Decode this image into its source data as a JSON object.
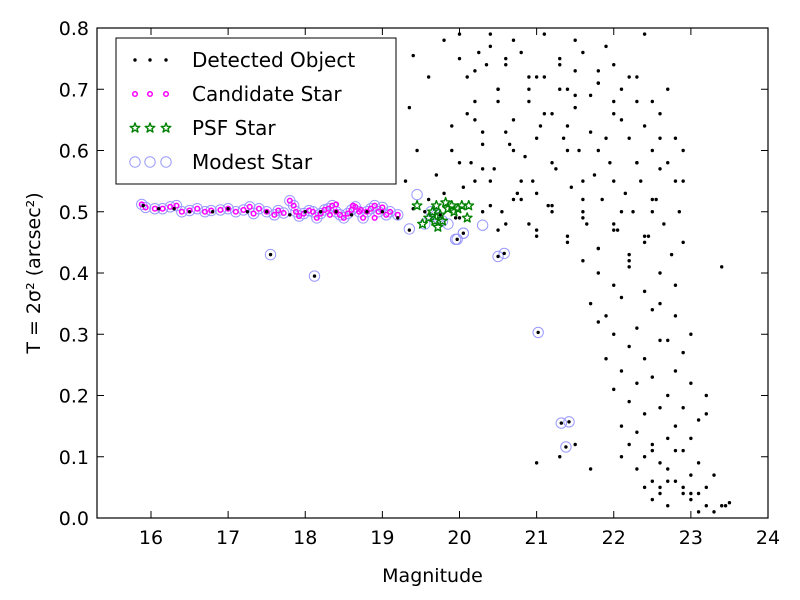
{
  "chart_data": {
    "type": "scatter",
    "xlabel": "Magnitude",
    "ylabel": "T = 2σ² (arcsec²)",
    "xlim": [
      15.3,
      24.0
    ],
    "ylim": [
      0.0,
      0.8
    ],
    "x_ticks": [
      "16",
      "17",
      "18",
      "19",
      "20",
      "21",
      "22",
      "23",
      "24"
    ],
    "y_ticks": [
      "0.0",
      "0.1",
      "0.2",
      "0.3",
      "0.4",
      "0.5",
      "0.6",
      "0.7",
      "0.8"
    ],
    "grid": false,
    "legend_position": "top-left",
    "colors": {
      "detected": "#000000",
      "candidate": "#ff00ff",
      "psf": "#008000",
      "modest": "#9999ff"
    },
    "series": [
      {
        "name": "Detected Object",
        "marker": "dot",
        "x": [
          15.9,
          16.1,
          16.3,
          16.5,
          16.8,
          17.0,
          17.25,
          17.5,
          17.8,
          18.0,
          18.2,
          18.4,
          18.6,
          18.8,
          19.0,
          19.2,
          19.4,
          19.55,
          19.75,
          19.95,
          17.55,
          18.12,
          19.35,
          19.97,
          20.05,
          20.5,
          20.58,
          21.02,
          21.32,
          21.42,
          21.38,
          19.3,
          19.35,
          19.4,
          19.45,
          19.6,
          19.8,
          19.9,
          20.0,
          20.2,
          20.25,
          20.3,
          20.35,
          20.4,
          20.5,
          20.6,
          20.7,
          20.8,
          20.9,
          21.0,
          21.1,
          21.2,
          21.3,
          21.4,
          21.5,
          21.6,
          21.7,
          21.8,
          21.9,
          22.0,
          22.1,
          22.2,
          22.3,
          22.4,
          22.5,
          22.6,
          22.7,
          22.8,
          22.9,
          20.0,
          20.1,
          20.2,
          20.4,
          20.5,
          20.6,
          20.7,
          20.9,
          21.0,
          21.1,
          21.3,
          21.4,
          21.5,
          21.6,
          21.8,
          21.9,
          22.0,
          22.1,
          22.3,
          22.4,
          22.5,
          22.6,
          22.8,
          22.9,
          19.6,
          19.7,
          19.9,
          20.05,
          20.15,
          20.3,
          20.45,
          20.55,
          20.65,
          20.75,
          20.85,
          20.95,
          21.05,
          21.15,
          21.25,
          21.35,
          21.45,
          21.55,
          21.65,
          21.75,
          21.85,
          21.95,
          22.05,
          22.15,
          22.25,
          22.35,
          22.45,
          22.55,
          22.65,
          22.75,
          22.85,
          20.1,
          20.3,
          20.5,
          20.7,
          20.9,
          21.0,
          21.2,
          21.4,
          21.5,
          21.7,
          21.8,
          22.0,
          22.2,
          22.3,
          22.5,
          22.7,
          22.9,
          20.0,
          20.2,
          20.4,
          20.6,
          20.8,
          21.1,
          21.3,
          21.5,
          21.6,
          21.8,
          22.0,
          22.1,
          22.3,
          22.5,
          22.6,
          20.3,
          20.5,
          20.7,
          20.9,
          21.0,
          21.2,
          21.4,
          21.6,
          21.8,
          22.0,
          22.2,
          22.4,
          22.6,
          22.8,
          19.8,
          20.0,
          20.2,
          20.4,
          20.6,
          20.8,
          21.0,
          21.2,
          21.4,
          21.6,
          21.8,
          22.0,
          22.2,
          22.4,
          21.6,
          21.8,
          22.0,
          22.2,
          22.4,
          22.6,
          22.8,
          23.0,
          21.7,
          21.9,
          22.1,
          22.3,
          22.5,
          22.7,
          22.9,
          21.8,
          22.0,
          22.2,
          22.4,
          22.6,
          22.8,
          23.0,
          23.2,
          21.9,
          22.1,
          22.3,
          22.5,
          22.7,
          22.9,
          23.1,
          22.0,
          22.2,
          22.4,
          22.6,
          22.8,
          23.0,
          22.1,
          22.3,
          22.5,
          22.7,
          22.9,
          23.1,
          23.3,
          22.2,
          22.4,
          22.6,
          22.8,
          23.0,
          23.2,
          22.3,
          22.5,
          22.7,
          22.9,
          23.1,
          22.4,
          22.6,
          22.8,
          23.0,
          23.2,
          23.4,
          22.5,
          22.7,
          22.9,
          23.1,
          23.3,
          23.5,
          21.0,
          21.3,
          21.5,
          21.7,
          22.1,
          22.5,
          22.6,
          22.7,
          23.0,
          23.2,
          23.4,
          23.45
        ],
        "y": [
          0.51,
          0.505,
          0.505,
          0.5,
          0.5,
          0.505,
          0.5,
          0.5,
          0.495,
          0.5,
          0.5,
          0.5,
          0.495,
          0.5,
          0.5,
          0.49,
          0.505,
          0.5,
          0.495,
          0.49,
          0.43,
          0.395,
          0.47,
          0.455,
          0.465,
          0.427,
          0.432,
          0.303,
          0.155,
          0.157,
          0.116,
          0.55,
          0.67,
          0.755,
          0.6,
          0.72,
          0.78,
          0.64,
          0.79,
          0.68,
          0.76,
          0.57,
          0.74,
          0.79,
          0.7,
          0.63,
          0.78,
          0.55,
          0.72,
          0.62,
          0.79,
          0.58,
          0.7,
          0.64,
          0.78,
          0.52,
          0.69,
          0.6,
          0.77,
          0.55,
          0.65,
          0.72,
          0.58,
          0.79,
          0.5,
          0.62,
          0.7,
          0.55,
          0.6,
          0.58,
          0.72,
          0.65,
          0.55,
          0.68,
          0.75,
          0.6,
          0.7,
          0.53,
          0.66,
          0.74,
          0.6,
          0.69,
          0.55,
          0.73,
          0.62,
          0.68,
          0.5,
          0.58,
          0.64,
          0.52,
          0.57,
          0.62,
          0.45,
          0.52,
          0.56,
          0.6,
          0.54,
          0.58,
          0.63,
          0.57,
          0.5,
          0.61,
          0.53,
          0.59,
          0.55,
          0.64,
          0.51,
          0.57,
          0.62,
          0.54,
          0.6,
          0.48,
          0.56,
          0.52,
          0.58,
          0.47,
          0.53,
          0.5,
          0.55,
          0.46,
          0.52,
          0.48,
          0.43,
          0.5,
          0.66,
          0.61,
          0.7,
          0.65,
          0.68,
          0.72,
          0.66,
          0.7,
          0.67,
          0.63,
          0.71,
          0.66,
          0.62,
          0.68,
          0.6,
          0.58,
          0.55,
          0.75,
          0.73,
          0.77,
          0.74,
          0.76,
          0.72,
          0.75,
          0.73,
          0.76,
          0.71,
          0.74,
          0.7,
          0.72,
          0.68,
          0.66,
          0.5,
          0.47,
          0.52,
          0.48,
          0.46,
          0.5,
          0.45,
          0.49,
          0.44,
          0.47,
          0.42,
          0.45,
          0.4,
          0.38,
          0.53,
          0.49,
          0.55,
          0.51,
          0.48,
          0.52,
          0.47,
          0.51,
          0.46,
          0.5,
          0.44,
          0.48,
          0.43,
          0.46,
          0.42,
          0.4,
          0.38,
          0.41,
          0.37,
          0.35,
          0.33,
          0.3,
          0.35,
          0.33,
          0.36,
          0.31,
          0.34,
          0.29,
          0.27,
          0.32,
          0.3,
          0.28,
          0.26,
          0.29,
          0.24,
          0.22,
          0.2,
          0.26,
          0.24,
          0.22,
          0.23,
          0.2,
          0.18,
          0.16,
          0.21,
          0.19,
          0.17,
          0.18,
          0.15,
          0.13,
          0.15,
          0.14,
          0.12,
          0.13,
          0.11,
          0.09,
          0.07,
          0.12,
          0.1,
          0.09,
          0.11,
          0.07,
          0.05,
          0.08,
          0.06,
          0.08,
          0.05,
          0.04,
          0.05,
          0.04,
          0.06,
          0.03,
          0.02,
          0.02,
          0.03,
          0.02,
          0.04,
          0.01,
          0.01,
          0.025,
          0.09,
          0.1,
          0.12,
          0.08,
          0.1,
          0.11,
          0.05,
          0.06,
          0.04,
          0.17,
          0.41,
          0.02
        ]
      },
      {
        "name": "Candidate Star",
        "marker": "circle-small",
        "x": [
          15.88,
          15.93,
          16.05,
          16.15,
          16.25,
          16.33,
          16.4,
          16.5,
          16.6,
          16.7,
          16.78,
          16.9,
          17.0,
          17.1,
          17.2,
          17.28,
          17.33,
          17.4,
          17.5,
          17.6,
          17.65,
          17.72,
          17.8,
          17.85,
          17.88,
          17.92,
          17.98,
          18.05,
          18.1,
          18.15,
          18.2,
          18.25,
          18.3,
          18.35,
          18.4,
          18.45,
          18.5,
          18.55,
          18.6,
          18.65,
          18.7,
          18.75,
          18.8,
          18.85,
          18.9,
          18.95,
          19.0,
          19.05,
          19.1,
          19.2,
          18.32,
          18.4,
          18.62,
          18.72,
          18.9
        ],
        "y": [
          0.512,
          0.507,
          0.505,
          0.505,
          0.508,
          0.51,
          0.5,
          0.502,
          0.505,
          0.5,
          0.502,
          0.503,
          0.505,
          0.5,
          0.503,
          0.508,
          0.497,
          0.505,
          0.5,
          0.495,
          0.502,
          0.498,
          0.518,
          0.51,
          0.5,
          0.493,
          0.497,
          0.502,
          0.5,
          0.49,
          0.497,
          0.503,
          0.505,
          0.51,
          0.5,
          0.495,
          0.49,
          0.497,
          0.503,
          0.508,
          0.5,
          0.49,
          0.5,
          0.505,
          0.51,
          0.5,
          0.507,
          0.495,
          0.5,
          0.495,
          0.495,
          0.512,
          0.51,
          0.503,
          0.49
        ]
      },
      {
        "name": "PSF Star",
        "marker": "star",
        "x": [
          19.45,
          19.52,
          19.6,
          19.65,
          19.68,
          19.7,
          19.72,
          19.75,
          19.78,
          19.82,
          19.85,
          19.9,
          19.93,
          19.98,
          20.03,
          20.1,
          20.12
        ],
        "y": [
          0.51,
          0.48,
          0.49,
          0.5,
          0.485,
          0.51,
          0.475,
          0.495,
          0.485,
          0.515,
          0.505,
          0.51,
          0.5,
          0.505,
          0.51,
          0.49,
          0.51
        ]
      },
      {
        "name": "Modest Star",
        "marker": "circle-open",
        "x": [
          15.88,
          15.93,
          16.05,
          16.15,
          16.25,
          16.33,
          16.4,
          16.5,
          16.6,
          16.7,
          16.78,
          16.9,
          17.0,
          17.1,
          17.2,
          17.28,
          17.33,
          17.4,
          17.5,
          17.6,
          17.65,
          17.72,
          17.8,
          17.85,
          17.88,
          17.92,
          17.98,
          18.05,
          18.1,
          18.15,
          18.2,
          18.25,
          18.3,
          18.35,
          18.4,
          18.45,
          18.5,
          18.55,
          18.6,
          18.65,
          18.7,
          18.75,
          18.8,
          18.85,
          18.9,
          18.95,
          19.0,
          19.05,
          19.1,
          19.2,
          19.35,
          19.45,
          19.55,
          19.63,
          19.7,
          19.72,
          19.78,
          19.85,
          19.95,
          20.05,
          17.55,
          18.12,
          19.97,
          20.05,
          20.3,
          20.5,
          20.58,
          21.02,
          21.32,
          21.42,
          21.38
        ],
        "y": [
          0.512,
          0.507,
          0.505,
          0.505,
          0.508,
          0.51,
          0.5,
          0.502,
          0.505,
          0.5,
          0.502,
          0.503,
          0.505,
          0.5,
          0.503,
          0.508,
          0.497,
          0.505,
          0.5,
          0.495,
          0.502,
          0.498,
          0.518,
          0.51,
          0.5,
          0.493,
          0.497,
          0.502,
          0.5,
          0.49,
          0.497,
          0.503,
          0.505,
          0.51,
          0.5,
          0.495,
          0.49,
          0.497,
          0.503,
          0.508,
          0.5,
          0.49,
          0.5,
          0.505,
          0.51,
          0.5,
          0.507,
          0.495,
          0.5,
          0.495,
          0.472,
          0.528,
          0.48,
          0.5,
          0.495,
          0.49,
          0.485,
          0.48,
          0.455,
          0.465,
          0.43,
          0.395,
          0.455,
          0.465,
          0.478,
          0.427,
          0.432,
          0.303,
          0.155,
          0.157,
          0.116
        ]
      }
    ]
  }
}
